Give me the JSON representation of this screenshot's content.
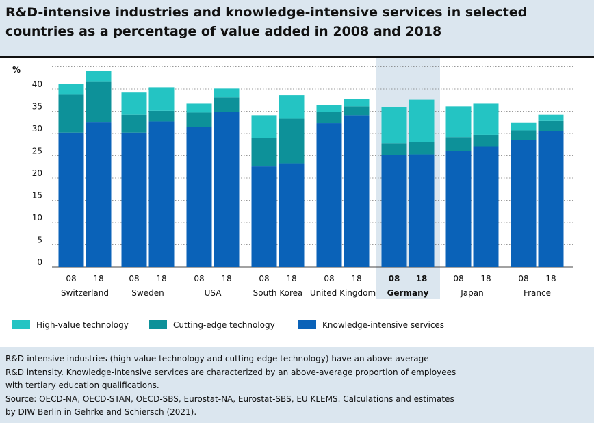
{
  "title": "R&D-intensive industries and knowledge-intensive services in selected countries as a percentage of value added in 2008 and 2018",
  "chart_data": {
    "type": "bar",
    "stacked": true,
    "ylabel": "%",
    "ylim": [
      0,
      45
    ],
    "yticks": [
      0,
      5,
      10,
      15,
      20,
      25,
      30,
      35,
      40
    ],
    "grid": true,
    "legend_position": "bottom",
    "countries": [
      "Switzerland",
      "Sweden",
      "USA",
      "South Korea",
      "United Kingdom",
      "Germany",
      "Japan",
      "France"
    ],
    "year_labels": [
      "08",
      "18"
    ],
    "highlight": "Germany",
    "series": [
      {
        "name": "Knowledge-intensive services",
        "color": "#0a62b8",
        "values": [
          30.2,
          32.6,
          30.2,
          32.7,
          31.5,
          34.8,
          22.6,
          23.3,
          32.3,
          34.1,
          25.1,
          25.3,
          26.1,
          27.0,
          28.5,
          30.6
        ]
      },
      {
        "name": "Cutting-edge technology",
        "color": "#0d9199",
        "values": [
          8.5,
          9.0,
          4.0,
          2.4,
          3.2,
          3.3,
          6.4,
          10.0,
          2.5,
          2.0,
          2.7,
          2.7,
          3.1,
          2.7,
          2.2,
          2.2
        ]
      },
      {
        "name": "High-value technology",
        "color": "#24c4c3",
        "values": [
          2.5,
          2.4,
          5.0,
          5.3,
          2.0,
          2.0,
          5.1,
          5.3,
          1.6,
          1.7,
          8.2,
          9.6,
          6.9,
          7.0,
          1.8,
          1.4
        ]
      }
    ]
  },
  "legend": [
    {
      "label": "High-value technology",
      "color": "#24c4c3"
    },
    {
      "label": "Cutting-edge technology",
      "color": "#0d9199"
    },
    {
      "label": "Knowledge-intensive services",
      "color": "#0a62b8"
    }
  ],
  "notes": [
    "R&D-intensive industries (high-value technology and cutting-edge technology) have an above-average",
    "R&D intensity. Knowledge-intensive services are characterized by an above-average proportion of employees",
    "with tertiary education qualifications.",
    "Source: OECD-NA, OECD-STAN, OECD-SBS, Eurostat-NA, Eurostat-SBS, EU KLEMS. Calculations and estimates",
    "by DIW Berlin in Gehrke and Schiersch (2021)."
  ]
}
